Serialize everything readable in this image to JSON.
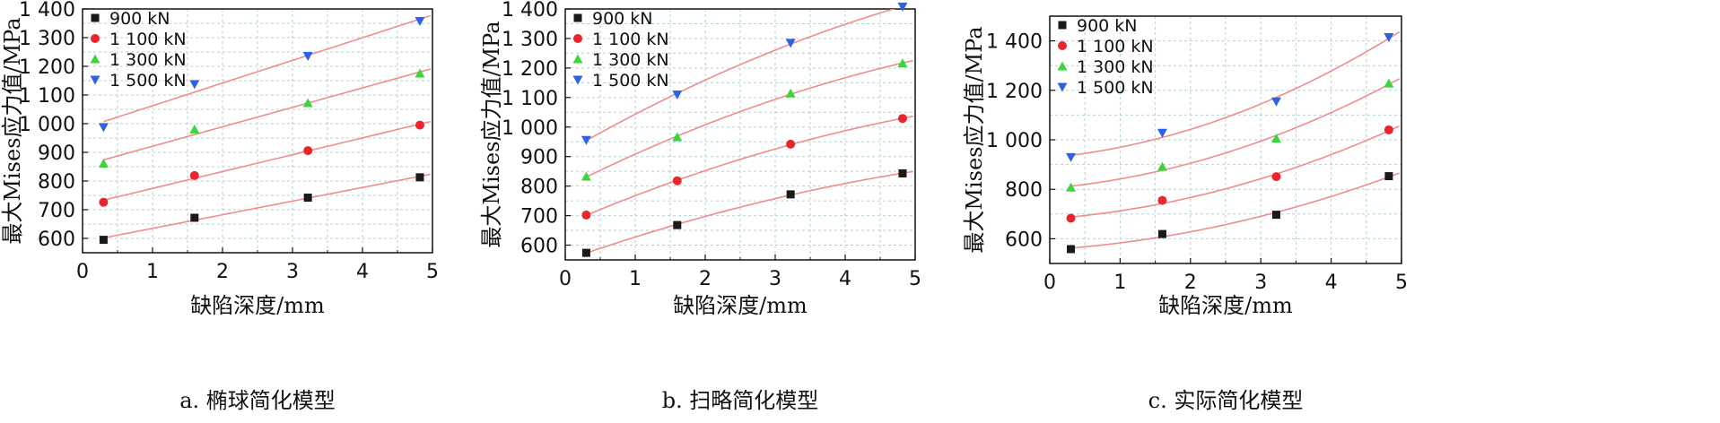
{
  "chart_data": [
    {
      "type": "scatter",
      "caption": "a. 椭球简化模型",
      "xlabel": "缺陷深度/mm",
      "ylabel": "最大Mises应力值/MPa",
      "xlim": [
        0,
        5
      ],
      "ylim": [
        550,
        1400
      ],
      "xticks": [
        "0",
        "1",
        "2",
        "3",
        "4",
        "5"
      ],
      "yticks": [
        600,
        700,
        800,
        900,
        1000,
        1100,
        1200,
        1300,
        1400
      ],
      "ytick_labels": [
        "600",
        "700",
        "800",
        "900",
        "1 000",
        "1 100",
        "1 200",
        "1 300",
        "1 400"
      ],
      "grid": true,
      "legend_position": "top-left",
      "fit_line": "linear",
      "x": [
        0.3,
        1.6,
        3.22,
        4.82
      ],
      "series": [
        {
          "name": "900 kN",
          "marker": "square",
          "color": "#1a1a1a",
          "values": [
            595,
            672,
            742,
            813
          ]
        },
        {
          "name": "1 100 kN",
          "marker": "circle",
          "color": "#e8262b",
          "values": [
            726,
            819,
            906,
            995
          ]
        },
        {
          "name": "1 300 kN",
          "marker": "triangle-up",
          "color": "#3cd63c",
          "values": [
            861,
            980,
            1072,
            1175
          ]
        },
        {
          "name": "1 500 kN",
          "marker": "triangle-down",
          "color": "#2b62e6",
          "values": [
            988,
            1138,
            1236,
            1358
          ]
        }
      ]
    },
    {
      "type": "scatter",
      "caption": "b. 扫略简化模型",
      "xlabel": "缺陷深度/mm",
      "ylabel": "最大Mises应力值/MPa",
      "xlim": [
        0,
        5
      ],
      "ylim": [
        550,
        1400
      ],
      "xticks": [
        "0",
        "1",
        "2",
        "3",
        "4",
        "5"
      ],
      "yticks": [
        600,
        700,
        800,
        900,
        1000,
        1100,
        1200,
        1300,
        1400
      ],
      "ytick_labels": [
        "600",
        "700",
        "800",
        "900",
        "1 000",
        "1 100",
        "1 200",
        "1 300",
        "1 400"
      ],
      "grid": true,
      "legend_position": "top-left",
      "fit_line": "concave",
      "x": [
        0.3,
        1.6,
        3.22,
        4.82
      ],
      "series": [
        {
          "name": "900 kN",
          "marker": "square",
          "color": "#1a1a1a",
          "values": [
            574,
            668,
            772,
            843
          ]
        },
        {
          "name": "1 100 kN",
          "marker": "circle",
          "color": "#e8262b",
          "values": [
            702,
            818,
            942,
            1029
          ]
        },
        {
          "name": "1 300 kN",
          "marker": "triangle-up",
          "color": "#3cd63c",
          "values": [
            832,
            966,
            1114,
            1216
          ]
        },
        {
          "name": "1 500 kN",
          "marker": "triangle-down",
          "color": "#2b62e6",
          "values": [
            956,
            1110,
            1285,
            1408
          ]
        }
      ]
    },
    {
      "type": "scatter",
      "caption": "c. 实际简化模型",
      "xlabel": "缺陷深度/mm",
      "ylabel": "最大Mises应力值/MPa",
      "xlim": [
        0,
        5
      ],
      "ylim": [
        500,
        1500
      ],
      "xticks": [
        "0",
        "1",
        "2",
        "3",
        "4",
        "5"
      ],
      "yticks": [
        600,
        800,
        1000,
        1200,
        1400
      ],
      "ytick_labels": [
        "600",
        "800",
        "1 000",
        "1 200",
        "1 400"
      ],
      "grid": true,
      "legend_position": "top-left",
      "fit_line": "convex",
      "x": [
        0.3,
        1.6,
        3.22,
        4.82
      ],
      "series": [
        {
          "name": "900 kN",
          "marker": "square",
          "color": "#1a1a1a",
          "values": [
            558,
            619,
            697,
            853
          ]
        },
        {
          "name": "1 100 kN",
          "marker": "circle",
          "color": "#e8262b",
          "values": [
            683,
            755,
            851,
            1040
          ]
        },
        {
          "name": "1 300 kN",
          "marker": "triangle-up",
          "color": "#3cd63c",
          "values": [
            807,
            891,
            1005,
            1228
          ]
        },
        {
          "name": "1 500 kN",
          "marker": "triangle-down",
          "color": "#2b62e6",
          "values": [
            930,
            1028,
            1155,
            1415
          ]
        }
      ]
    }
  ]
}
